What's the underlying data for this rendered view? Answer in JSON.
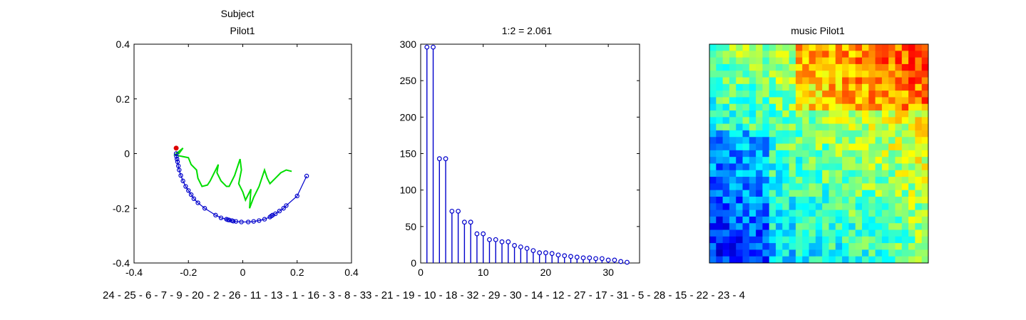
{
  "chart_data": [
    {
      "type": "line",
      "title": [
        "Subject",
        "Pilot1"
      ],
      "xlim": [
        -0.4,
        0.4
      ],
      "ylim": [
        -0.4,
        0.4
      ],
      "xticks": [
        "-0.4",
        "-0.2",
        "0",
        "0.2",
        "0.4"
      ],
      "yticks": [
        "0.4",
        "0.2",
        "0",
        "-0.2",
        "-0.4"
      ],
      "grid": false,
      "series": [
        {
          "color": "#0000cc",
          "marker": "circle",
          "x": [
            -0.245,
            -0.244,
            -0.242,
            -0.24,
            -0.237,
            -0.234,
            -0.228,
            -0.22,
            -0.21,
            -0.2,
            -0.19,
            -0.18,
            -0.165,
            -0.14,
            -0.1,
            -0.08,
            -0.06,
            -0.055,
            -0.05,
            -0.04,
            -0.035,
            -0.025,
            -0.005,
            0.02,
            0.04,
            0.06,
            0.08,
            0.1,
            0.105,
            0.11,
            0.12,
            0.135,
            0.15,
            0.16,
            0.2,
            0.235
          ],
          "y": [
            0.0,
            -0.01,
            -0.02,
            -0.03,
            -0.045,
            -0.06,
            -0.08,
            -0.1,
            -0.12,
            -0.135,
            -0.15,
            -0.165,
            -0.18,
            -0.2,
            -0.225,
            -0.235,
            -0.24,
            -0.242,
            -0.243,
            -0.245,
            -0.247,
            -0.248,
            -0.25,
            -0.25,
            -0.248,
            -0.245,
            -0.24,
            -0.232,
            -0.228,
            -0.225,
            -0.22,
            -0.21,
            -0.2,
            -0.19,
            -0.155,
            -0.082
          ]
        },
        {
          "color": "#00dd00",
          "marker": "none",
          "x": [
            -0.245,
            -0.235,
            -0.22,
            -0.25,
            -0.2,
            -0.19,
            -0.17,
            -0.165,
            -0.15,
            -0.13,
            -0.12,
            -0.1,
            -0.09,
            -0.095,
            -0.08,
            -0.06,
            -0.05,
            -0.04,
            -0.03,
            -0.02,
            -0.01,
            -0.005,
            -0.015,
            0.0,
            0.01,
            0.03,
            0.025,
            0.04,
            0.06,
            0.07,
            0.08,
            0.09,
            0.1,
            0.12,
            0.14,
            0.16,
            0.18
          ],
          "y": [
            0.005,
            0.0,
            0.02,
            -0.005,
            -0.015,
            -0.04,
            -0.06,
            -0.09,
            -0.12,
            -0.115,
            -0.1,
            -0.06,
            -0.04,
            -0.07,
            -0.1,
            -0.12,
            -0.12,
            -0.1,
            -0.08,
            -0.05,
            -0.02,
            -0.06,
            -0.11,
            -0.14,
            -0.17,
            -0.13,
            -0.2,
            -0.16,
            -0.12,
            -0.09,
            -0.06,
            -0.09,
            -0.11,
            -0.09,
            -0.07,
            -0.06,
            -0.065
          ]
        }
      ],
      "highlight_point": {
        "x": -0.245,
        "y": 0.02,
        "color": "#dd0000"
      }
    },
    {
      "type": "bar",
      "subtype": "stem",
      "title": "1:2 = 2.061",
      "xlim": [
        0,
        35
      ],
      "ylim": [
        0,
        300
      ],
      "xticks": [
        "0",
        "10",
        "20",
        "30"
      ],
      "yticks": [
        "300",
        "250",
        "200",
        "150",
        "100",
        "50",
        "0"
      ],
      "x": [
        1,
        2,
        3,
        4,
        5,
        6,
        7,
        8,
        9,
        10,
        11,
        12,
        13,
        14,
        15,
        16,
        17,
        18,
        19,
        20,
        21,
        22,
        23,
        24,
        25,
        26,
        27,
        28,
        29,
        30,
        31,
        32,
        33
      ],
      "values": [
        296,
        296,
        143,
        143,
        71,
        71,
        56,
        56,
        40,
        40,
        32,
        32,
        29,
        29,
        24,
        22,
        20,
        17,
        14,
        14,
        13,
        11,
        10,
        9,
        8,
        7,
        7,
        6,
        6,
        4,
        4,
        2,
        1
      ],
      "color": "#0000cc"
    },
    {
      "type": "heatmap",
      "title": "music Pilot1",
      "rows": 33,
      "cols": 33,
      "colormap": "jet",
      "note_seed": 7
    }
  ],
  "bottom_text": "24 - 25 - 6 - 7 - 9 - 20 - 2 - 26 - 11 - 13 - 1 - 16 - 3 - 8 - 33 - 21 - 19 - 10 - 18 - 32 - 29 - 30 - 14 - 12 - 27 - 17 - 31 - 5 - 28 - 15 - 22 - 23 - 4"
}
